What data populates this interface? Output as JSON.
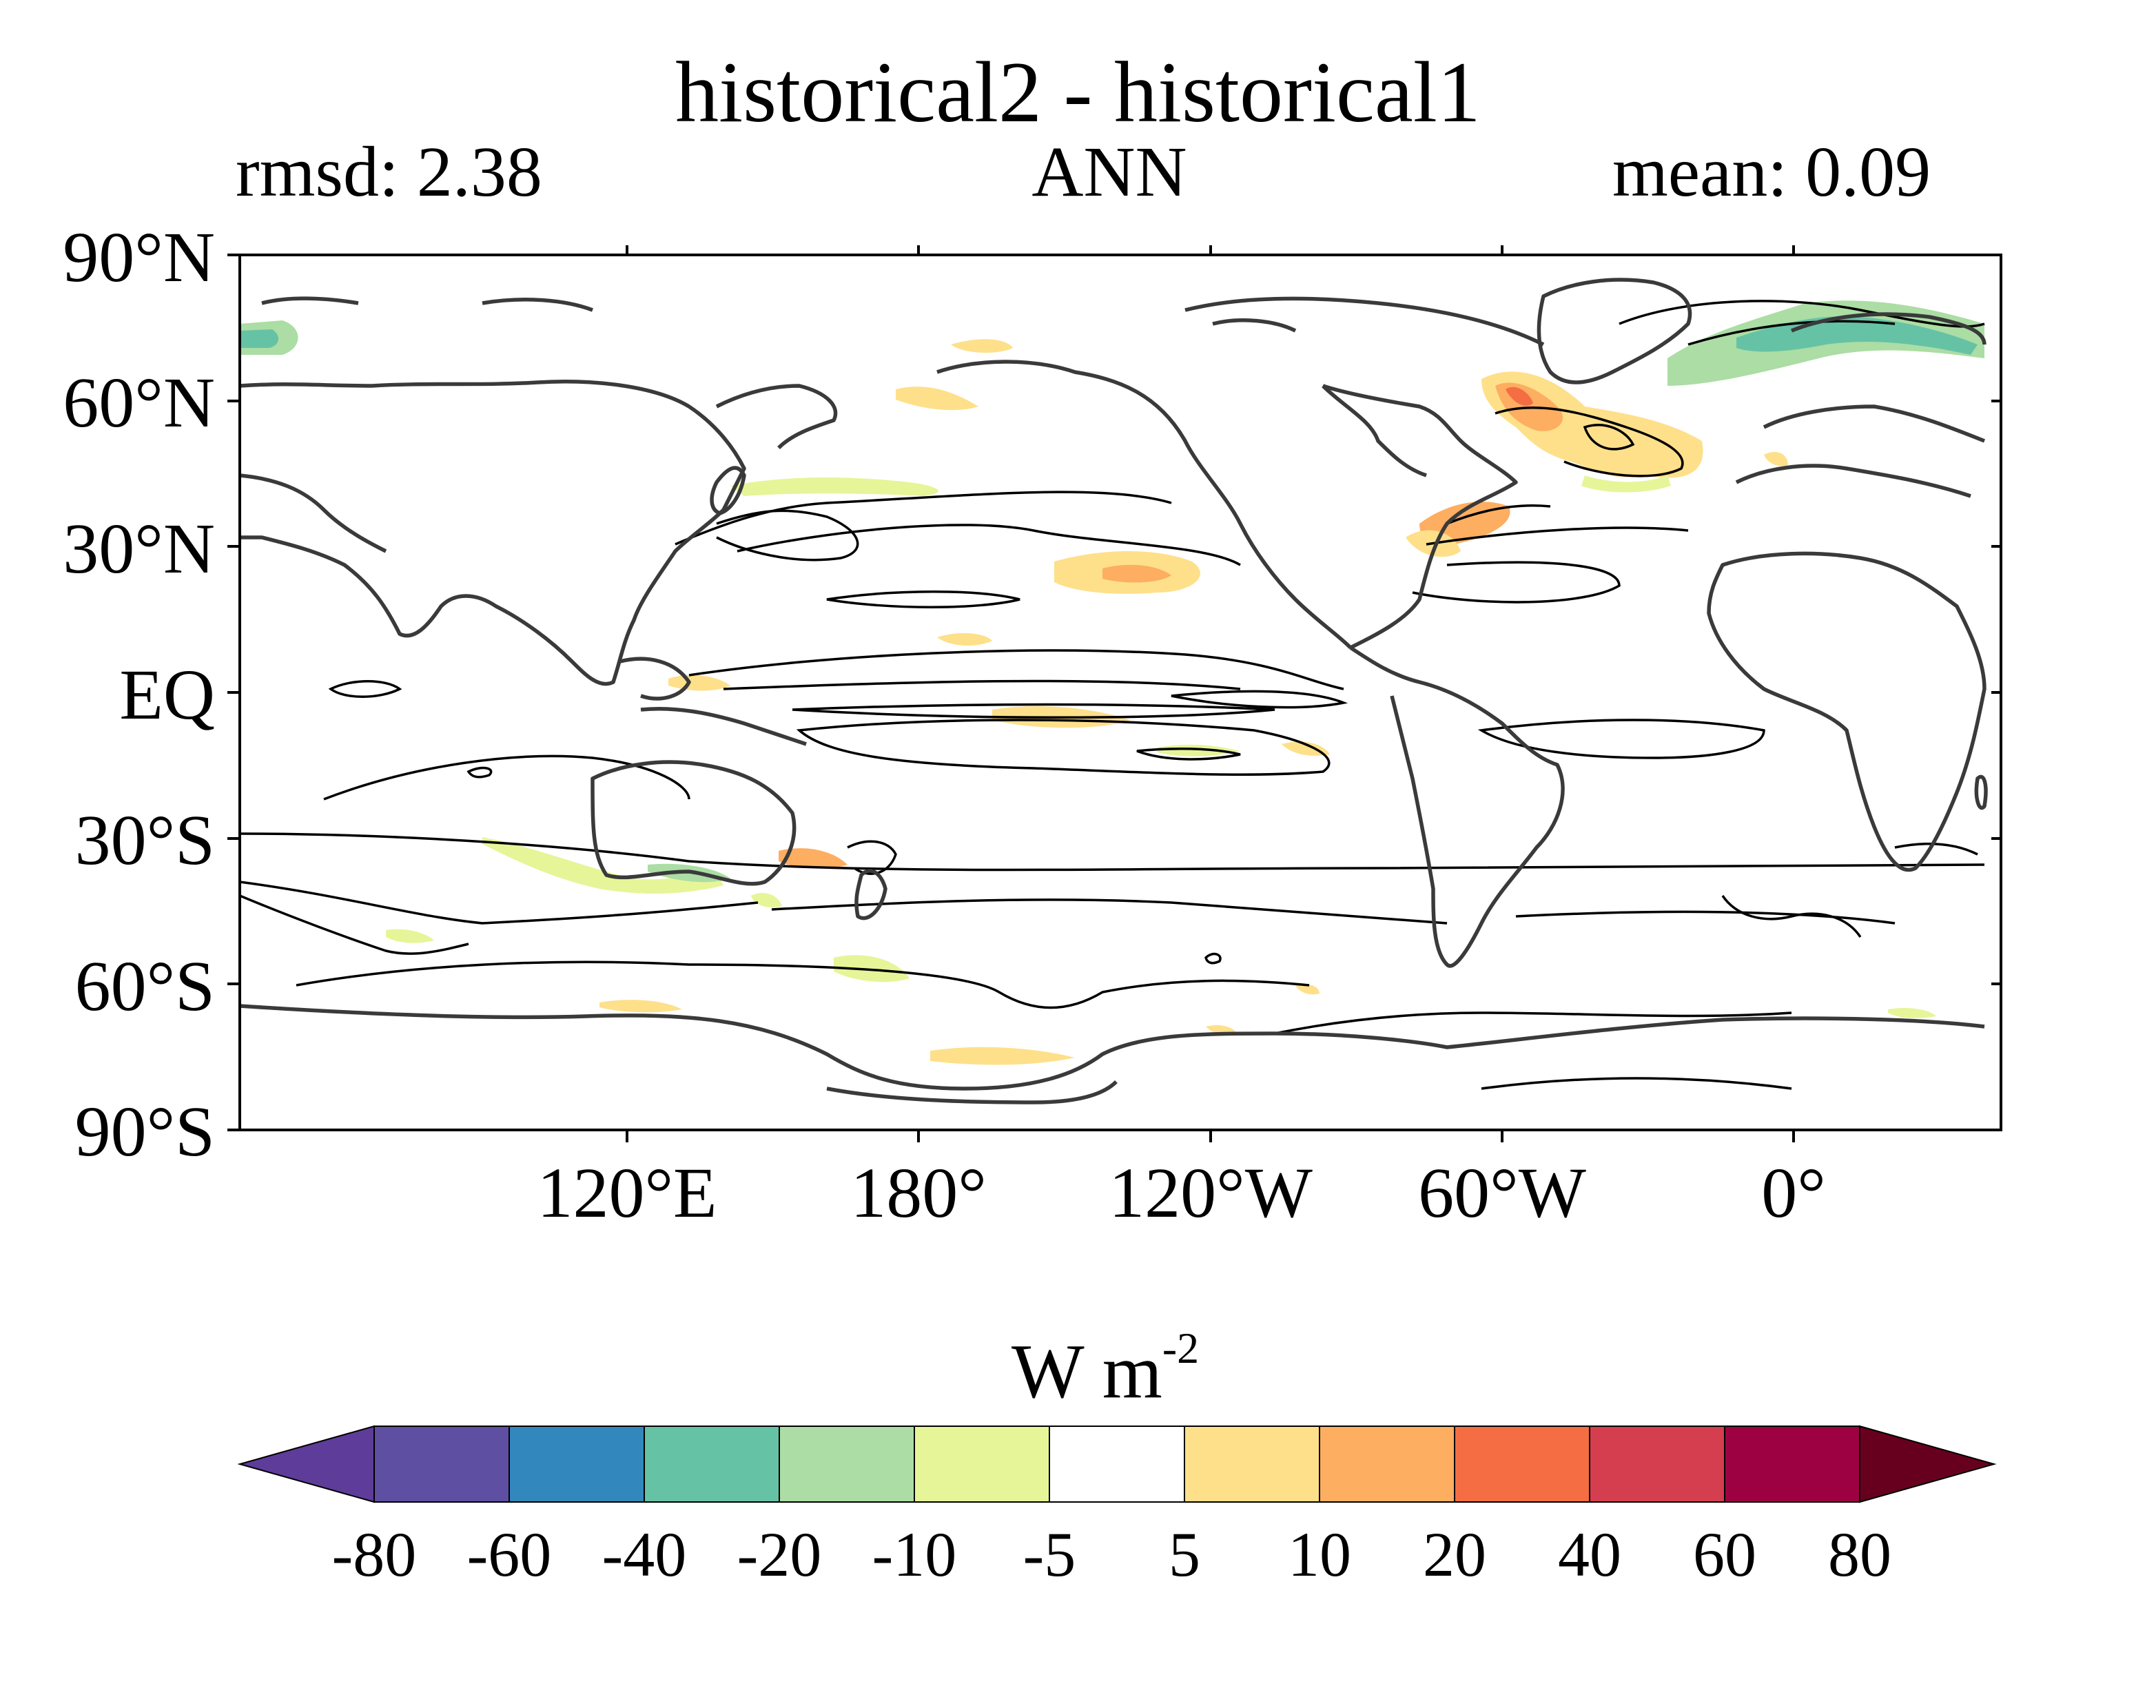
{
  "title": "historical2 - historical1",
  "subtitle_left": "rmsd: 2.38",
  "subtitle_center": "ANN",
  "subtitle_right": "mean: 0.09",
  "lat_ticks": [
    "90°N",
    "60°N",
    "30°N",
    "EQ",
    "30°S",
    "60°S",
    "90°S"
  ],
  "lon_ticks": [
    "120°E",
    "180°",
    "120°W",
    "60°W",
    "0°"
  ],
  "colorbar": {
    "units_main": "W m",
    "units_exp": "-2",
    "levels": [
      "-80",
      "-60",
      "-40",
      "-20",
      "-10",
      "-5",
      "5",
      "10",
      "20",
      "40",
      "60",
      "80"
    ],
    "colors": [
      "#5e3c99",
      "#5e4fa2",
      "#3288bd",
      "#66c2a5",
      "#abdda4",
      "#e6f598",
      "#ffffff",
      "#fee08b",
      "#fdae61",
      "#f46d43",
      "#d53e4f",
      "#9e0142",
      "#67001f"
    ]
  },
  "chart_data": {
    "type": "heatmap",
    "title": "historical2 - historical1",
    "season": "ANN",
    "rmsd": 2.38,
    "mean": 0.09,
    "units": "W m-2",
    "lat_range": [
      -90,
      90
    ],
    "lon_ticks": [
      "120°E",
      "180°",
      "120°W",
      "60°W",
      "0°"
    ],
    "color_levels": [
      -80,
      -60,
      -40,
      -20,
      -10,
      -5,
      5,
      10,
      20,
      40,
      60,
      80
    ],
    "notable_features": [
      {
        "region": "North Atlantic subpolar / Labrador Sea",
        "sign": "positive",
        "approx_range": "10 to 40"
      },
      {
        "region": "Greenland-Barents Sea ice edge",
        "sign": "negative",
        "approx_range": "-40 to -10"
      },
      {
        "region": "Kuroshio Extension",
        "sign": "negative",
        "approx_range": "-10 to -5"
      },
      {
        "region": "Gulf Stream",
        "sign": "positive",
        "approx_range": "5 to 20"
      },
      {
        "region": "Subtropical North Pacific",
        "sign": "positive",
        "approx_range": "5 to 20"
      },
      {
        "region": "Southern Ocean south of Australia",
        "sign": "negative",
        "approx_range": "-10 to -5"
      }
    ]
  }
}
